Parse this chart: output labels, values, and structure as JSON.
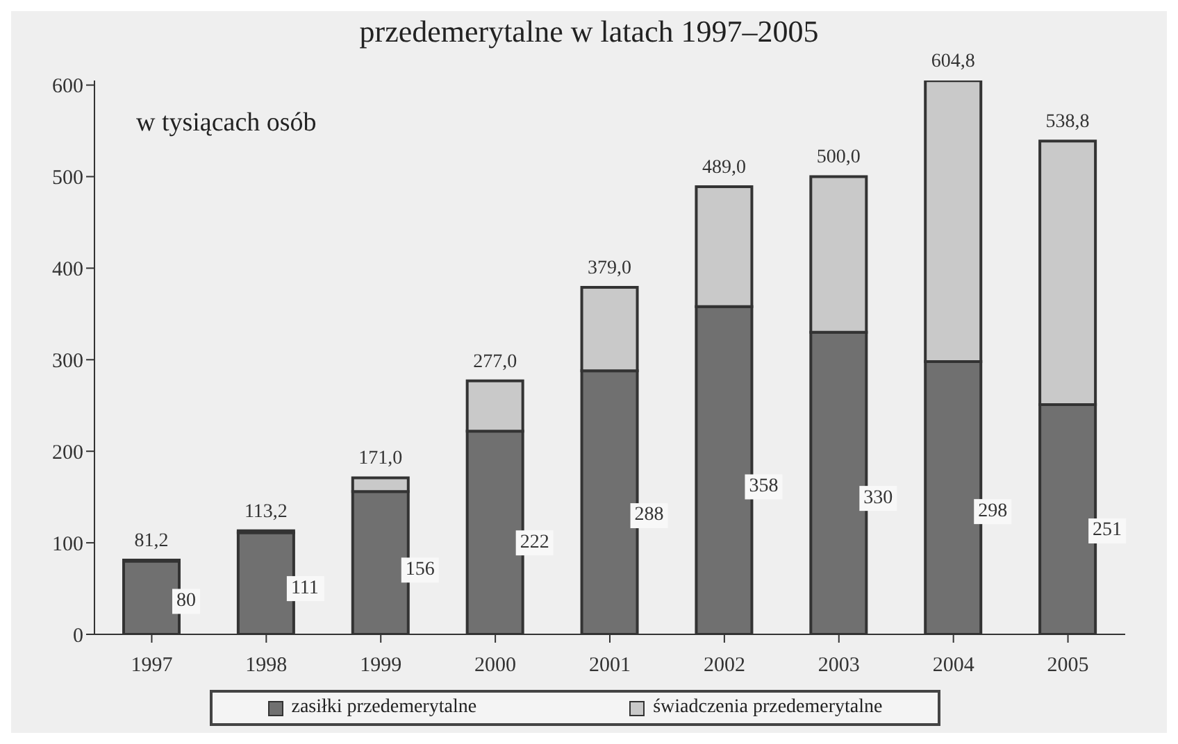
{
  "chart_data": {
    "type": "bar",
    "title": "przedemerytalne w latach 1997–2005",
    "annotations": [
      "w tysiącach osób"
    ],
    "categories": [
      "1997",
      "1998",
      "1999",
      "2000",
      "2001",
      "2002",
      "2003",
      "2004",
      "2005"
    ],
    "stacked": true,
    "series": [
      {
        "name": "zasiłki przedemerytalne",
        "color": "#707070",
        "values": [
          80,
          111,
          156,
          222,
          288,
          358,
          330,
          298,
          251
        ],
        "value_labels": [
          "80",
          "111",
          "156",
          "222",
          "288",
          "358",
          "330",
          "298",
          "251"
        ]
      },
      {
        "name": "świadczenia przedemerytalne",
        "color": "#c9c9c9",
        "values": [
          1.2,
          2.2,
          15,
          55,
          91,
          131,
          170,
          306.8,
          287.8
        ]
      }
    ],
    "totals": [
      "81,2",
      "113,2",
      "171,0",
      "277,0",
      "379,0",
      "489,0",
      "500,0",
      "604,8",
      "538,8"
    ],
    "ylim": [
      0,
      605
    ],
    "yticks": [
      0,
      100,
      200,
      300,
      400,
      500,
      600
    ],
    "grid": false,
    "legend": "bottom"
  }
}
